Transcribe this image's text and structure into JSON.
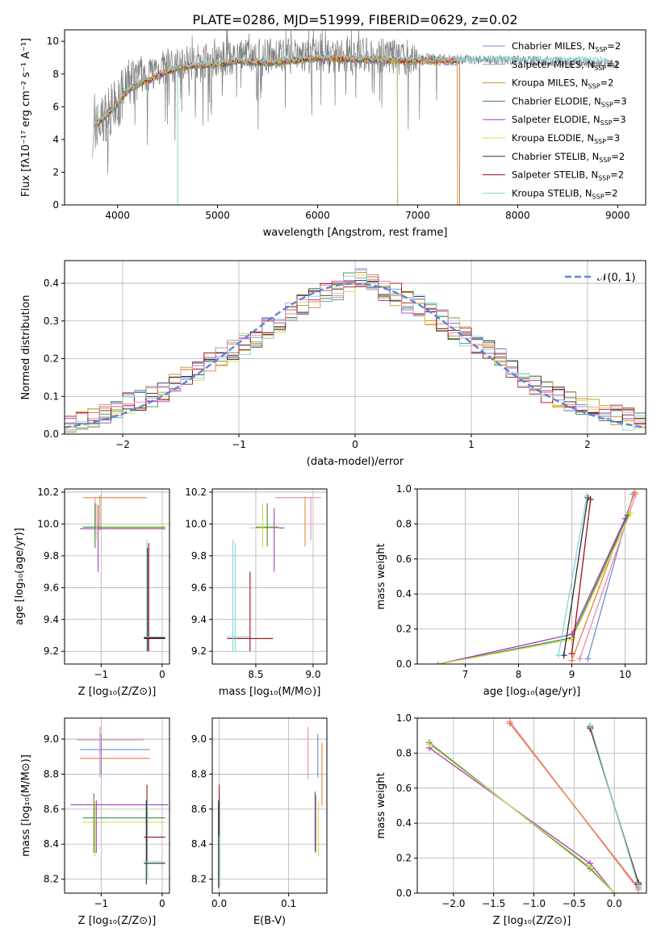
{
  "figure_title": "PLATE=0286, MJD=51999, FIBERID=0629, z=0.02",
  "colors": {
    "Chabrier MILES": "#6a8fd8",
    "Salpeter MILES": "#9a9a9a",
    "Kroupa MILES": "#c8941e",
    "Chabrier ELODIE": "#3f8a3f",
    "Salpeter ELODIE": "#a53cc4",
    "Kroupa ELODIE": "#d6d842",
    "Chabrier STELIB": "#2b2b2b",
    "Salpeter STELIB": "#9e1010",
    "Kroupa STELIB": "#7fd6dc",
    "Chabrier MILES alt": "#6a8fd8",
    "orange": "#ee7f3a",
    "pink": "#ee88b8",
    "data_gray": "#808080"
  },
  "chart_data": [
    {
      "id": "spectrum",
      "type": "line",
      "title": "PLATE=0286, MJD=51999, FIBERID=0629, z=0.02",
      "xlabel": "wavelength [Angstrom, rest frame]",
      "ylabel": "Flux [fλ10⁻¹⁷ erg cm⁻² s⁻¹ A⁻¹]",
      "xlim": [
        3470,
        9280
      ],
      "ylim": [
        0,
        10.7
      ],
      "xticks": [
        "4000",
        "5000",
        "6000",
        "7000",
        "8000",
        "9000"
      ],
      "yticks": [
        "0",
        "2",
        "4",
        "6",
        "8",
        "10"
      ],
      "grid": false,
      "legend_placement": "top-right",
      "legend": [
        {
          "name": "Chabrier MILES",
          "nssp": "2"
        },
        {
          "name": "Salpeter MILES",
          "nssp": "2"
        },
        {
          "name": "Kroupa MILES",
          "nssp": "2"
        },
        {
          "name": "Chabrier ELODIE",
          "nssp": "3"
        },
        {
          "name": "Salpeter ELODIE",
          "nssp": "3"
        },
        {
          "name": "Kroupa ELODIE",
          "nssp": "3"
        },
        {
          "name": "Chabrier STELIB",
          "nssp": "2"
        },
        {
          "name": "Salpeter STELIB",
          "nssp": "2"
        },
        {
          "name": "Kroupa STELIB",
          "nssp": "2"
        }
      ],
      "data_envelope": {
        "x": [
          3750,
          3800,
          3900,
          4000,
          4100,
          4200,
          4300,
          4400,
          4500,
          4700,
          5000,
          5200,
          5500,
          6000,
          6500,
          7000,
          7400,
          7800,
          8200,
          8600,
          9000
        ],
        "y": [
          4.5,
          4.8,
          5.6,
          6.2,
          7.3,
          7.9,
          8.0,
          8.3,
          8.5,
          8.7,
          8.9,
          9.0,
          9.1,
          9.1,
          9.1,
          9.0,
          8.9,
          8.9,
          8.8,
          8.7,
          8.6
        ]
      },
      "model_mean": {
        "x": [
          3750,
          3800,
          3900,
          4000,
          4100,
          4200,
          4300,
          4400,
          4500,
          4700,
          5000,
          5200,
          5500,
          6000,
          6500,
          7000,
          7400
        ],
        "y": [
          4.8,
          5.0,
          5.6,
          6.2,
          7.0,
          7.4,
          7.6,
          7.9,
          8.2,
          8.5,
          8.6,
          8.8,
          8.7,
          9.0,
          8.9,
          8.8,
          8.8
        ]
      },
      "annotations": [
        {
          "label": "cyan drop",
          "x": 4600
        },
        {
          "label": "yellow drop",
          "x": 6800
        },
        {
          "label": "orange drop",
          "x": 7420
        }
      ]
    },
    {
      "id": "residuals",
      "type": "line",
      "xlabel": "(data-model)/error",
      "ylabel": "Normed distribution",
      "xlim": [
        -2.5,
        2.5
      ],
      "ylim": [
        0,
        0.46
      ],
      "xticks": [
        "−2",
        "−1",
        "0",
        "1",
        "2"
      ],
      "yticks": [
        "0.0",
        "0.1",
        "0.2",
        "0.3",
        "0.4"
      ],
      "grid": true,
      "legend_placement": "top-right",
      "legend": [
        {
          "name": "𝒩(0, 1)"
        }
      ],
      "bins": [
        -2.5,
        -2.4,
        -2.3,
        -2.2,
        -2.1,
        -2.0,
        -1.9,
        -1.8,
        -1.7,
        -1.6,
        -1.5,
        -1.4,
        -1.3,
        -1.2,
        -1.1,
        -1.0,
        -0.9,
        -0.8,
        -0.7,
        -0.6,
        -0.5,
        -0.4,
        -0.3,
        -0.2,
        -0.1,
        0.0,
        0.1,
        0.2,
        0.3,
        0.4,
        0.5,
        0.6,
        0.7,
        0.8,
        0.9,
        1.0,
        1.1,
        1.2,
        1.3,
        1.4,
        1.5,
        1.6,
        1.7,
        1.8,
        1.9,
        2.0,
        2.1,
        2.2,
        2.3,
        2.4
      ],
      "histogram_base": [
        0.03,
        0.035,
        0.04,
        0.05,
        0.07,
        0.08,
        0.09,
        0.1,
        0.11,
        0.13,
        0.15,
        0.17,
        0.19,
        0.2,
        0.22,
        0.24,
        0.26,
        0.28,
        0.3,
        0.32,
        0.34,
        0.36,
        0.37,
        0.38,
        0.4,
        0.41,
        0.4,
        0.38,
        0.37,
        0.35,
        0.34,
        0.32,
        0.3,
        0.28,
        0.26,
        0.24,
        0.22,
        0.2,
        0.18,
        0.15,
        0.13,
        0.11,
        0.1,
        0.09,
        0.08,
        0.07,
        0.06,
        0.05,
        0.04,
        0.03
      ]
    },
    {
      "id": "age_vs_Z",
      "type": "scatter",
      "xlabel": "Z [log₁₀(Z/Z⊙)]",
      "ylabel": "age  [log₁₀(age/yr)]",
      "xlim": [
        -1.6,
        0.12
      ],
      "ylim": [
        9.12,
        10.22
      ],
      "xticks": [
        "−1",
        "0"
      ],
      "yticks": [
        "9.2",
        "9.4",
        "9.6",
        "9.8",
        "10.0",
        "10.2"
      ],
      "grid": true
    },
    {
      "id": "age_vs_mass",
      "type": "scatter",
      "xlabel": "mass [log₁₀(M/M⊙)]",
      "xlim": [
        8.12,
        9.12
      ],
      "ylim": [
        9.12,
        10.22
      ],
      "xticks": [
        "8.5",
        "9.0"
      ],
      "yticks": [
        "9.2",
        "9.4",
        "9.6",
        "9.8",
        "10.0",
        "10.2"
      ],
      "grid": true
    },
    {
      "id": "weight_vs_age",
      "type": "line",
      "xlabel": "age  [log₁₀(age/yr)]",
      "ylabel": "mass weight",
      "xlim": [
        6.1,
        10.4
      ],
      "ylim": [
        0,
        1
      ],
      "xticks": [
        "7",
        "8",
        "9",
        "10"
      ],
      "yticks": [
        "0.0",
        "0.2",
        "0.4",
        "0.6",
        "0.8",
        "1.0"
      ],
      "grid": true
    },
    {
      "id": "mass_vs_Z",
      "type": "scatter",
      "xlabel": "Z [log₁₀(Z/Z⊙)]",
      "ylabel": "mass [log₁₀(M/M⊙)]",
      "xlim": [
        -1.6,
        0.12
      ],
      "ylim": [
        8.12,
        9.12
      ],
      "xticks": [
        "−1",
        "0"
      ],
      "yticks": [
        "8.2",
        "8.4",
        "8.6",
        "8.8",
        "9.0"
      ],
      "grid": true
    },
    {
      "id": "mass_vs_ebv",
      "type": "scatter",
      "xlabel": "E(B-V)",
      "xlim": [
        -0.01,
        0.155
      ],
      "ylim": [
        8.12,
        9.12
      ],
      "xticks": [
        "0.0",
        "0.1"
      ],
      "yticks": [
        "8.2",
        "8.4",
        "8.6",
        "8.8",
        "9.0"
      ],
      "grid": true
    },
    {
      "id": "weight_vs_Z",
      "type": "line",
      "xlabel": "Z [log₁₀(Z/Z⊙)]",
      "ylabel": "mass weight",
      "xlim": [
        -2.45,
        0.4
      ],
      "ylim": [
        0,
        1
      ],
      "xticks": [
        "−2.0",
        "−1.5",
        "−1.0",
        "−0.5",
        "0.0"
      ],
      "yticks": [
        "0.0",
        "0.2",
        "0.4",
        "0.6",
        "0.8",
        "1.0"
      ],
      "grid": true
    }
  ]
}
